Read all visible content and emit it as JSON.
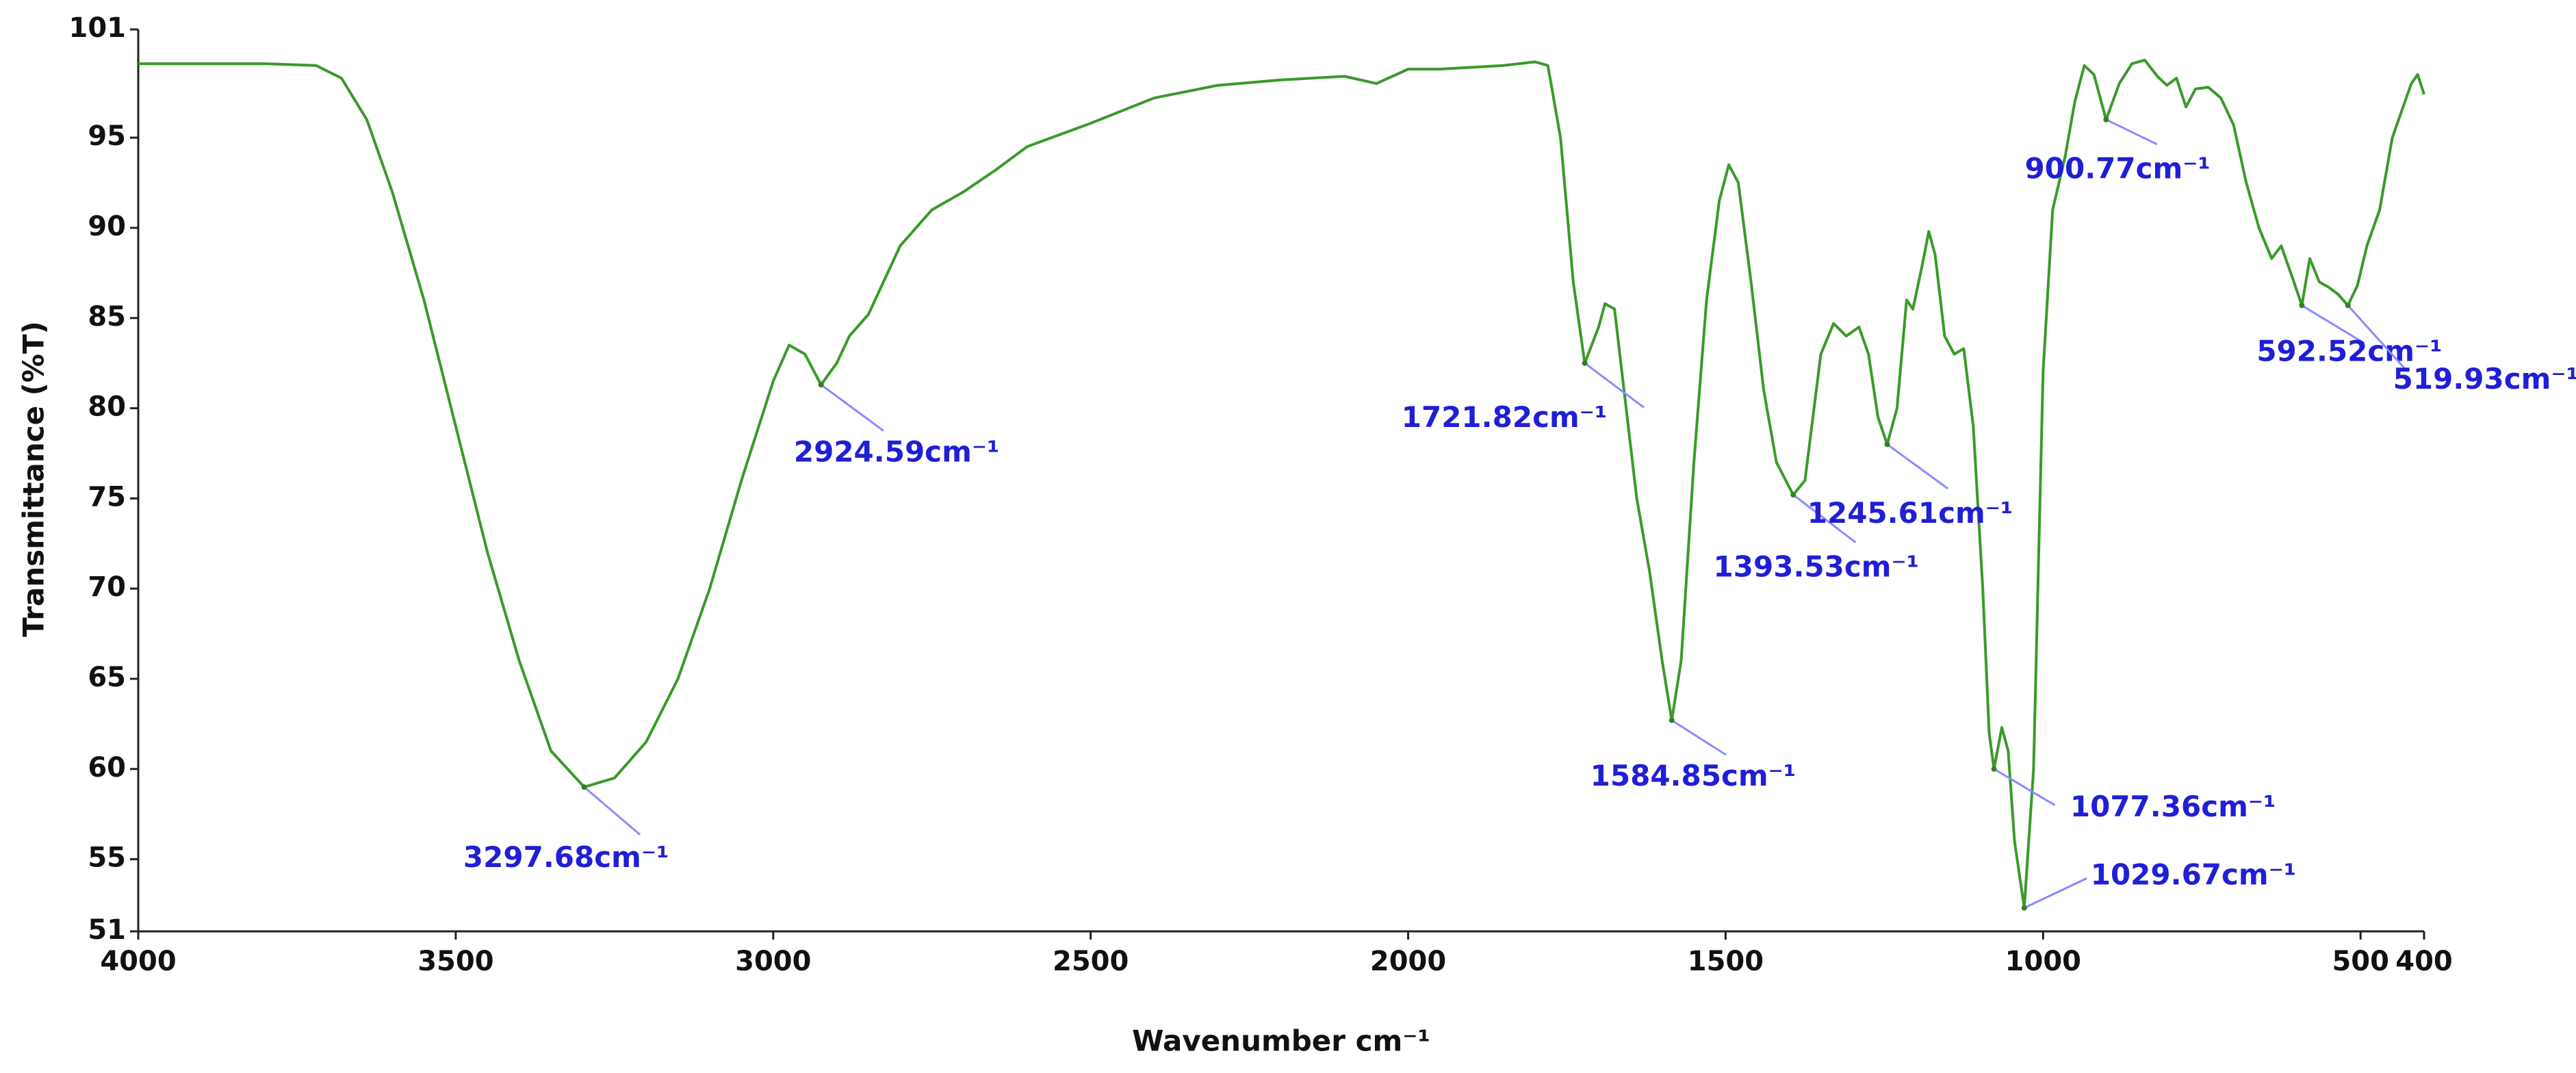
{
  "chart_data": {
    "type": "line",
    "xlabel": "Wavenumber cm⁻¹",
    "ylabel": "Transmittance (%T)",
    "xlim": [
      4000,
      400
    ],
    "xticks": [
      4000,
      3500,
      3000,
      2500,
      2000,
      1500,
      1000,
      500,
      400
    ],
    "ylim": [
      51,
      101
    ],
    "yticks": [
      51,
      55,
      60,
      65,
      70,
      75,
      80,
      85,
      90,
      95,
      101
    ],
    "color": "#3a9a2a",
    "x": [
      4000,
      3800,
      3720,
      3680,
      3640,
      3600,
      3550,
      3500,
      3450,
      3400,
      3350,
      3297.68,
      3250,
      3200,
      3150,
      3100,
      3050,
      3000,
      2975,
      2950,
      2924.59,
      2900,
      2880,
      2850,
      2800,
      2750,
      2700,
      2650,
      2600,
      2500,
      2400,
      2300,
      2200,
      2100,
      2050,
      2000,
      1950,
      1900,
      1850,
      1800,
      1780,
      1760,
      1740,
      1721.82,
      1700,
      1690,
      1675,
      1660,
      1640,
      1620,
      1600,
      1584.85,
      1570,
      1550,
      1530,
      1510,
      1495,
      1480,
      1460,
      1440,
      1420,
      1393.53,
      1375,
      1350,
      1330,
      1310,
      1290,
      1275,
      1260,
      1245.61,
      1230,
      1215,
      1205,
      1190,
      1180,
      1170,
      1155,
      1140,
      1125,
      1110,
      1095,
      1085,
      1077.36,
      1065,
      1055,
      1045,
      1029.67,
      1015,
      1000,
      985,
      965,
      950,
      935,
      920,
      900.77,
      880,
      860,
      840,
      820,
      805,
      790,
      775,
      760,
      740,
      720,
      700,
      680,
      660,
      640,
      625,
      605,
      592.52,
      580,
      565,
      550,
      535,
      519.93,
      505,
      490,
      470,
      450,
      435,
      420,
      410,
      400
    ],
    "values": [
      99.1,
      99.1,
      99.0,
      98.3,
      96,
      92,
      86,
      79,
      72,
      66,
      61,
      59,
      59.5,
      61.5,
      65,
      70,
      76,
      81.5,
      83.5,
      83,
      81.3,
      82.5,
      84,
      85.2,
      89,
      91,
      92,
      93.2,
      94.5,
      95.8,
      97.2,
      97.9,
      98.2,
      98.4,
      98,
      98.8,
      98.8,
      98.9,
      99,
      99.2,
      99,
      95,
      87,
      82.5,
      84.5,
      85.8,
      85.5,
      81,
      75,
      71,
      66,
      62.7,
      66,
      77,
      86,
      91.5,
      93.5,
      92.5,
      87,
      81,
      77,
      75.2,
      76,
      83,
      84.7,
      84,
      84.5,
      83,
      79.5,
      78,
      80,
      86,
      85.5,
      88,
      89.8,
      88.5,
      84,
      83,
      83.3,
      79,
      70,
      62,
      60,
      62.3,
      61,
      56,
      52.3,
      60,
      82,
      91,
      94,
      97,
      99,
      98.5,
      96,
      98,
      99.1,
      99.3,
      98.4,
      97.9,
      98.3,
      96.7,
      97.7,
      97.8,
      97.2,
      95.7,
      92.5,
      90,
      88.3,
      89,
      87,
      85.7,
      88.3,
      87,
      86.7,
      86.3,
      85.7,
      86.8,
      89,
      91,
      95,
      96.5,
      98,
      98.5,
      97.4
    ],
    "annotations": [
      {
        "x": 3297.68,
        "y": 59,
        "label": "3297.68cm⁻¹"
      },
      {
        "x": 2924.59,
        "y": 81.3,
        "label": "2924.59cm⁻¹"
      },
      {
        "x": 1721.82,
        "y": 82.5,
        "label": "1721.82cm⁻¹"
      },
      {
        "x": 1584.85,
        "y": 62.7,
        "label": "1584.85cm⁻¹"
      },
      {
        "x": 1393.53,
        "y": 75.2,
        "label": "1393.53cm⁻¹"
      },
      {
        "x": 1245.61,
        "y": 78,
        "label": "1245.61cm⁻¹"
      },
      {
        "x": 1077.36,
        "y": 60,
        "label": "1077.36cm⁻¹"
      },
      {
        "x": 1029.67,
        "y": 52.3,
        "label": "1029.67cm⁻¹"
      },
      {
        "x": 900.77,
        "y": 96,
        "label": "900.77cm⁻¹"
      },
      {
        "x": 592.52,
        "y": 85.7,
        "label": "592.52cm⁻¹"
      },
      {
        "x": 519.93,
        "y": 85.7,
        "label": "519.93cm⁻¹"
      }
    ]
  }
}
